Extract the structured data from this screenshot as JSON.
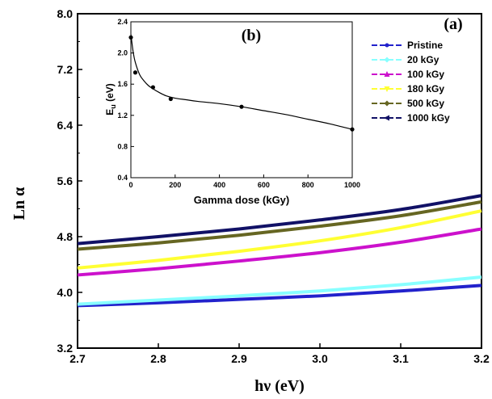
{
  "chart_data": [
    {
      "type": "line",
      "panel_label": "(a)",
      "xlabel": "hν (eV)",
      "ylabel": "Ln α",
      "xlim": [
        2.7,
        3.2
      ],
      "ylim": [
        3.2,
        8.0
      ],
      "xticks": [
        "2.7",
        "2.8",
        "2.9",
        "3.0",
        "3.1",
        "3.2"
      ],
      "yticks": [
        "3.2",
        "4.0",
        "4.8",
        "5.6",
        "6.4",
        "7.2",
        "8.0"
      ],
      "x": [
        2.7,
        2.8,
        2.9,
        3.0,
        3.1,
        3.2
      ],
      "legend_position": "top-right",
      "series": [
        {
          "name": "Pristine",
          "color": "#2222cc",
          "values": [
            3.81,
            3.85,
            3.9,
            3.95,
            4.02,
            4.1
          ]
        },
        {
          "name": "20 kGy",
          "color": "#88ffff",
          "values": [
            3.83,
            3.89,
            3.95,
            4.02,
            4.11,
            4.22
          ]
        },
        {
          "name": "100 kGy",
          "color": "#cc11cc",
          "values": [
            4.25,
            4.34,
            4.45,
            4.57,
            4.72,
            4.91
          ]
        },
        {
          "name": "180 kGy",
          "color": "#ffff33",
          "values": [
            4.35,
            4.46,
            4.59,
            4.74,
            4.93,
            5.17
          ]
        },
        {
          "name": "500 kGy",
          "color": "#666622",
          "values": [
            4.62,
            4.71,
            4.82,
            4.95,
            5.1,
            5.3
          ]
        },
        {
          "name": "1000 kGy",
          "color": "#111166",
          "values": [
            4.7,
            4.8,
            4.91,
            5.04,
            5.19,
            5.39
          ]
        }
      ]
    },
    {
      "type": "scatter",
      "panel_label": "(b)",
      "xlabel": "Gamma dose (kGy)",
      "ylabel_main": "E",
      "ylabel_sub": "u",
      "ylabel_unit": " (eV)",
      "xlim": [
        0,
        1000
      ],
      "ylim": [
        0.4,
        2.4
      ],
      "xticks": [
        "0",
        "200",
        "400",
        "600",
        "800",
        "1000"
      ],
      "yticks": [
        "0.4",
        "0.8",
        "1.2",
        "1.6",
        "2.0",
        "2.4"
      ],
      "points": {
        "x": [
          0,
          20,
          100,
          180,
          500,
          1000
        ],
        "y": [
          2.2,
          1.75,
          1.56,
          1.41,
          1.31,
          1.02
        ]
      },
      "fit_curve": {
        "x": [
          0,
          10,
          20,
          40,
          60,
          80,
          100,
          130,
          160,
          200,
          250,
          300,
          400,
          500,
          600,
          700,
          800,
          900,
          1000
        ],
        "y": [
          2.24,
          2.02,
          1.88,
          1.72,
          1.64,
          1.58,
          1.54,
          1.49,
          1.45,
          1.42,
          1.4,
          1.38,
          1.35,
          1.31,
          1.26,
          1.21,
          1.15,
          1.09,
          1.02
        ]
      }
    }
  ]
}
